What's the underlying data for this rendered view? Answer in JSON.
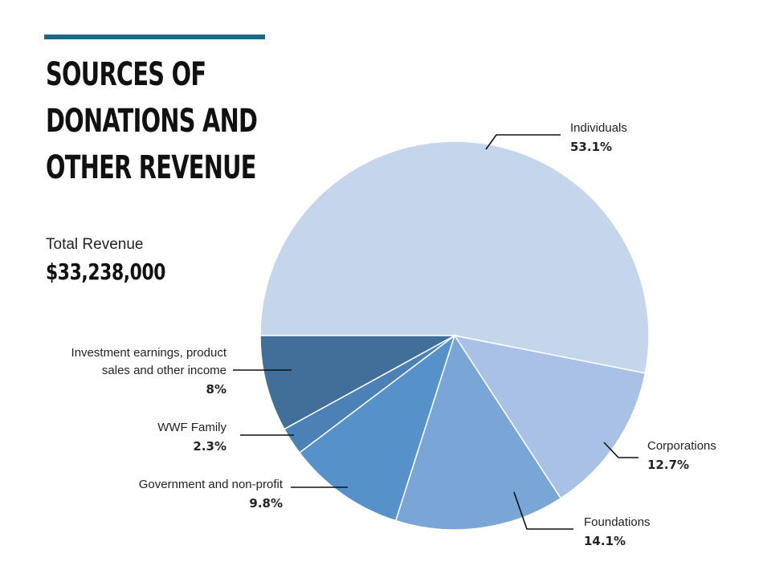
{
  "header": {
    "title_lines": [
      "SOURCES OF",
      "DONATIONS AND",
      "OTHER REVENUE"
    ],
    "accent_color": "#1a6787"
  },
  "summary": {
    "total_label": "Total Revenue",
    "total_value": "$33,238,000"
  },
  "chart_data": {
    "type": "pie",
    "title": "SOURCES OF DONATIONS AND OTHER REVENUE",
    "start_angle_deg": 180,
    "direction": "clockwise",
    "slices": [
      {
        "name": "Individuals",
        "value": 53.1,
        "pct_label": "53.1%",
        "color": "#c5d5ec"
      },
      {
        "name": "Corporations",
        "value": 12.7,
        "pct_label": "12.7%",
        "color": "#a8c1e4"
      },
      {
        "name": "Foundations",
        "value": 14.1,
        "pct_label": "14.1%",
        "color": "#7aa6d7"
      },
      {
        "name": "Government and non-profit",
        "value": 9.8,
        "pct_label": "9.8%",
        "color": "#5692c9"
      },
      {
        "name": "WWF Family",
        "value": 2.3,
        "pct_label": "2.3%",
        "color": "#4b81b5"
      },
      {
        "name": "Investment earnings, product sales and other income",
        "name_lines": [
          "Investment earnings, product",
          "sales and other income"
        ],
        "value": 8,
        "pct_label": "8%",
        "color": "#426f9a"
      }
    ]
  }
}
